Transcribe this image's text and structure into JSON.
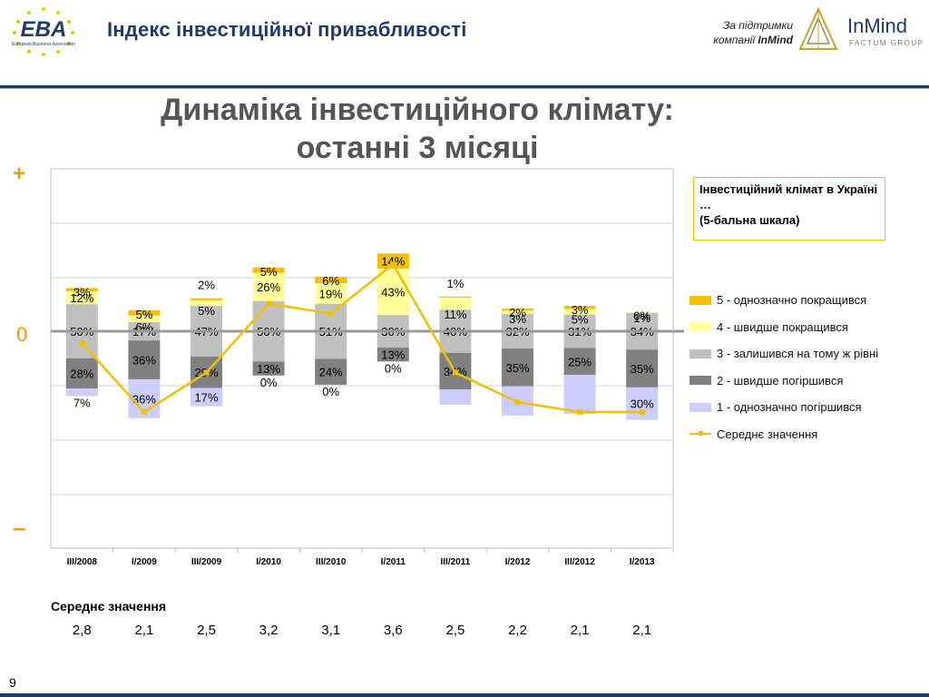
{
  "header": {
    "logo_text": "EBA",
    "logo_subtext": "European Business Association",
    "title": "Індекс інвестиційної привабливості",
    "support_line1": "За підтримки",
    "support_line2_prefix": "компанії ",
    "support_line2_brand": "InMind",
    "inmind_logo_text": "InMind",
    "inmind_logo_subtext": "FACTUM GROUP"
  },
  "slide_title_line1": "Динаміка інвестиційного клімату:",
  "slide_title_line2": "останні 3 місяці",
  "axis_marks": {
    "plus": "+",
    "zero": "0",
    "minus": "–"
  },
  "legend_title": "Інвестиційний клімат в Україні …\n(5-бальна шкала)",
  "colors": {
    "s5": "#f5c000",
    "s4": "#ffff99",
    "s3": "#c0c0c0",
    "s2": "#808080",
    "s1": "#ccccff",
    "avg": "#f0c000"
  },
  "chart_data": {
    "type": "bar",
    "stacked": "diverging",
    "categories": [
      "III/2008",
      "I/2009",
      "III/2009",
      "I/2010",
      "III/2010",
      "I/2011",
      "III/2011",
      "I/2012",
      "III/2012",
      "I/2013"
    ],
    "series": [
      {
        "name": "5 - однозначно покращився",
        "values": [
          3,
          5,
          2,
          5,
          6,
          14,
          1,
          2,
          3,
          0
        ],
        "labels": [
          "3%",
          "5%",
          "",
          "5%",
          "6%",
          "14%",
          "",
          "2%",
          "3%",
          "0%"
        ]
      },
      {
        "name": "4 - швидше покращився",
        "values": [
          12,
          6,
          5,
          26,
          19,
          43,
          11,
          3,
          5,
          1
        ],
        "labels": [
          "12%",
          "6%",
          "5%",
          "26%",
          "19%",
          "43%",
          "11%",
          "3%",
          "5%",
          "1%"
        ]
      },
      {
        "name": "3 - залишився на тому ж рівні",
        "values": [
          50,
          17,
          47,
          56,
          51,
          30,
          40,
          32,
          31,
          34
        ],
        "labels": [
          "50%",
          "17%",
          "47%",
          "56%",
          "51%",
          "30%",
          "40%",
          "32%",
          "31%",
          "34%"
        ]
      },
      {
        "name": "2 - швидше погіршився",
        "values": [
          28,
          36,
          29,
          13,
          24,
          13,
          34,
          35,
          25,
          35
        ],
        "labels": [
          "28%",
          "36%",
          "29%",
          "13%",
          "24%",
          "13%",
          "34%",
          "35%",
          "25%",
          "35%"
        ]
      },
      {
        "name": "1 - однозначно погіршився",
        "values": [
          7,
          36,
          17,
          0,
          0,
          0,
          14,
          27,
          36,
          30
        ],
        "labels": [
          "7%",
          "36%",
          "17%",
          "0%",
          "0%",
          "0%",
          "",
          "",
          "",
          "30%"
        ]
      }
    ],
    "extra_labels": [
      {
        "category": "III/2009",
        "text": "2%"
      },
      {
        "category": "III/2011",
        "text": "1%"
      }
    ],
    "average": {
      "name": "Середнє значення",
      "values": [
        2.8,
        2.1,
        2.5,
        3.2,
        3.1,
        3.6,
        2.5,
        2.2,
        2.1,
        2.1
      ]
    },
    "grid": true,
    "legend": "right"
  },
  "average_table": {
    "label": "Середнє значення",
    "values": [
      "2,8",
      "2,1",
      "2,5",
      "3,2",
      "3,1",
      "3,6",
      "2,5",
      "2,2",
      "2,1",
      "2,1"
    ]
  },
  "page_number": "9"
}
